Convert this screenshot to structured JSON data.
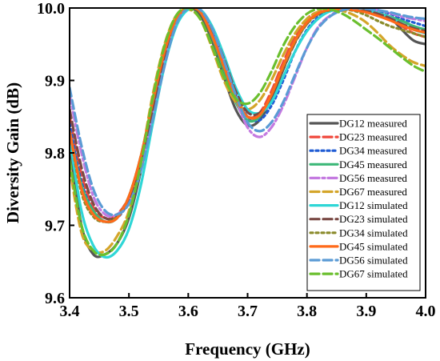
{
  "chart_data": {
    "type": "line",
    "title": "",
    "xlabel": "Frequency (GHz)",
    "ylabel": "Diversity Gain (dB)",
    "xlim": [
      3.4,
      4.0
    ],
    "ylim": [
      9.6,
      10.0
    ],
    "xticks": [
      "3.4",
      "3.5",
      "3.6",
      "3.7",
      "3.8",
      "3.9",
      "4.0"
    ],
    "yticks": [
      "9.6",
      "9.7",
      "9.8",
      "9.9",
      "10.0"
    ],
    "grid": false,
    "legend_position": "lower-right",
    "series": [
      {
        "name": "DG12 measured",
        "color": "#555555",
        "dash": "solid",
        "x": [
          3.4,
          3.42,
          3.44,
          3.46,
          3.48,
          3.5,
          3.52,
          3.54,
          3.56,
          3.58,
          3.6,
          3.62,
          3.64,
          3.66,
          3.68,
          3.7,
          3.72,
          3.74,
          3.76,
          3.78,
          3.8,
          3.82,
          3.84,
          3.86,
          3.88,
          3.9,
          3.92,
          3.94,
          3.96,
          3.98,
          4.0
        ],
        "y": [
          9.81,
          9.7,
          9.66,
          9.66,
          9.675,
          9.71,
          9.775,
          9.86,
          9.935,
          9.985,
          10.0,
          9.99,
          9.955,
          9.905,
          9.86,
          9.838,
          9.845,
          9.875,
          9.915,
          9.955,
          9.98,
          9.993,
          9.998,
          9.999,
          9.998,
          9.996,
          9.993,
          9.987,
          9.97,
          9.955,
          9.95
        ]
      },
      {
        "name": "DG23 measured",
        "color": "#f0483c",
        "dash": "dash",
        "x": [
          3.4,
          3.42,
          3.44,
          3.46,
          3.48,
          3.5,
          3.52,
          3.54,
          3.56,
          3.58,
          3.6,
          3.62,
          3.64,
          3.66,
          3.68,
          3.7,
          3.72,
          3.74,
          3.76,
          3.78,
          3.8,
          3.82,
          3.84,
          3.86,
          3.88,
          3.9,
          3.92,
          3.94,
          3.96,
          3.98,
          4.0
        ],
        "y": [
          9.85,
          9.77,
          9.725,
          9.71,
          9.715,
          9.74,
          9.795,
          9.87,
          9.94,
          9.985,
          10.0,
          9.995,
          9.965,
          9.92,
          9.875,
          9.85,
          9.855,
          9.885,
          9.925,
          9.96,
          9.985,
          9.995,
          9.998,
          9.998,
          9.997,
          9.995,
          9.99,
          9.985,
          9.975,
          9.965,
          9.96
        ]
      },
      {
        "name": "DG34 measured",
        "color": "#1f5bd4",
        "dash": "dot",
        "x": [
          3.4,
          3.42,
          3.44,
          3.46,
          3.48,
          3.5,
          3.52,
          3.54,
          3.56,
          3.58,
          3.6,
          3.62,
          3.64,
          3.66,
          3.68,
          3.7,
          3.72,
          3.74,
          3.76,
          3.78,
          3.8,
          3.82,
          3.84,
          3.86,
          3.88,
          3.9,
          3.92,
          3.94,
          3.96,
          3.98,
          4.0
        ],
        "y": [
          9.84,
          9.76,
          9.72,
          9.705,
          9.71,
          9.735,
          9.79,
          9.865,
          9.935,
          9.982,
          10.0,
          9.996,
          9.968,
          9.925,
          9.88,
          9.85,
          9.845,
          9.865,
          9.9,
          9.94,
          9.97,
          9.988,
          9.996,
          9.999,
          9.999,
          9.998,
          9.996,
          9.992,
          9.985,
          9.98,
          9.975
        ]
      },
      {
        "name": "DG45 measured",
        "color": "#3cb878",
        "dash": "solid",
        "x": [
          3.4,
          3.42,
          3.44,
          3.46,
          3.48,
          3.5,
          3.52,
          3.54,
          3.56,
          3.58,
          3.6,
          3.62,
          3.64,
          3.66,
          3.68,
          3.7,
          3.72,
          3.74,
          3.76,
          3.78,
          3.8,
          3.82,
          3.84,
          3.86,
          3.88,
          3.9,
          3.92,
          3.94,
          3.96,
          3.98,
          4.0
        ],
        "y": [
          9.83,
          9.755,
          9.72,
          9.705,
          9.71,
          9.74,
          9.795,
          9.87,
          9.94,
          9.985,
          10.0,
          9.995,
          9.96,
          9.915,
          9.87,
          9.845,
          9.85,
          9.88,
          9.92,
          9.955,
          9.98,
          9.993,
          9.998,
          9.999,
          9.998,
          9.996,
          9.993,
          9.988,
          9.982,
          9.975,
          9.97
        ]
      },
      {
        "name": "DG56 measured",
        "color": "#c47ae0",
        "dash": "dashdot",
        "x": [
          3.4,
          3.42,
          3.44,
          3.46,
          3.48,
          3.5,
          3.52,
          3.54,
          3.56,
          3.58,
          3.6,
          3.62,
          3.64,
          3.66,
          3.68,
          3.7,
          3.72,
          3.74,
          3.76,
          3.78,
          3.8,
          3.82,
          3.84,
          3.86,
          3.88,
          3.9,
          3.92,
          3.94,
          3.96,
          3.98,
          4.0
        ],
        "y": [
          9.88,
          9.8,
          9.74,
          9.715,
          9.715,
          9.735,
          9.78,
          9.85,
          9.925,
          9.98,
          10.0,
          9.997,
          9.97,
          9.925,
          9.875,
          9.835,
          9.822,
          9.835,
          9.865,
          9.905,
          9.945,
          9.975,
          9.99,
          9.998,
          10.0,
          9.999,
          9.997,
          9.993,
          9.988,
          9.985,
          9.982
        ]
      },
      {
        "name": "DG67 measured",
        "color": "#d4a52a",
        "dash": "dash",
        "x": [
          3.4,
          3.42,
          3.44,
          3.46,
          3.48,
          3.5,
          3.52,
          3.54,
          3.56,
          3.58,
          3.6,
          3.62,
          3.64,
          3.66,
          3.68,
          3.7,
          3.72,
          3.74,
          3.76,
          3.78,
          3.8,
          3.82,
          3.84,
          3.86,
          3.88,
          3.9,
          3.92,
          3.94,
          3.96,
          3.98,
          4.0
        ],
        "y": [
          9.78,
          9.69,
          9.665,
          9.665,
          9.685,
          9.72,
          9.79,
          9.88,
          9.95,
          9.99,
          9.998,
          9.985,
          9.945,
          9.9,
          9.87,
          9.86,
          9.872,
          9.9,
          9.935,
          9.965,
          9.985,
          9.995,
          9.998,
          9.996,
          9.99,
          9.98,
          9.965,
          9.948,
          9.935,
          9.925,
          9.92
        ]
      },
      {
        "name": "DG12 simulated",
        "color": "#2ed6d6",
        "dash": "solid",
        "x": [
          3.4,
          3.42,
          3.44,
          3.46,
          3.48,
          3.5,
          3.52,
          3.54,
          3.56,
          3.58,
          3.6,
          3.62,
          3.64,
          3.66,
          3.68,
          3.7,
          3.72,
          3.74,
          3.76,
          3.78,
          3.8,
          3.82,
          3.84,
          3.86,
          3.88,
          3.9,
          3.92,
          3.94,
          3.96,
          3.98,
          4.0
        ],
        "y": [
          9.82,
          9.72,
          9.672,
          9.656,
          9.665,
          9.695,
          9.755,
          9.84,
          9.92,
          9.975,
          9.998,
          9.998,
          9.975,
          9.935,
          9.89,
          9.86,
          9.855,
          9.87,
          9.905,
          9.94,
          9.968,
          9.986,
          9.996,
          9.999,
          9.999,
          9.997,
          9.993,
          9.987,
          9.978,
          9.97,
          9.965
        ]
      },
      {
        "name": "DG23 simulated",
        "color": "#7a4a45",
        "dash": "dash",
        "x": [
          3.4,
          3.42,
          3.44,
          3.46,
          3.48,
          3.5,
          3.52,
          3.54,
          3.56,
          3.58,
          3.6,
          3.62,
          3.64,
          3.66,
          3.68,
          3.7,
          3.72,
          3.74,
          3.76,
          3.78,
          3.8,
          3.82,
          3.84,
          3.86,
          3.88,
          3.9,
          3.92,
          3.94,
          3.96,
          3.98,
          4.0
        ],
        "y": [
          9.86,
          9.78,
          9.73,
          9.71,
          9.712,
          9.735,
          9.785,
          9.86,
          9.935,
          9.983,
          10.0,
          9.996,
          9.97,
          9.93,
          9.885,
          9.856,
          9.855,
          9.878,
          9.915,
          9.952,
          9.978,
          9.992,
          9.998,
          9.999,
          9.998,
          9.996,
          9.992,
          9.986,
          9.978,
          9.972,
          9.968
        ]
      },
      {
        "name": "DG34 simulated",
        "color": "#8a8a2a",
        "dash": "dot",
        "x": [
          3.4,
          3.42,
          3.44,
          3.46,
          3.48,
          3.5,
          3.52,
          3.54,
          3.56,
          3.58,
          3.6,
          3.62,
          3.64,
          3.66,
          3.68,
          3.7,
          3.72,
          3.74,
          3.76,
          3.78,
          3.8,
          3.82,
          3.84,
          3.86,
          3.88,
          3.9,
          3.92,
          3.94,
          3.96,
          3.98,
          4.0
        ],
        "y": [
          9.83,
          9.745,
          9.712,
          9.705,
          9.712,
          9.74,
          9.795,
          9.87,
          9.94,
          9.985,
          10.0,
          9.994,
          9.962,
          9.918,
          9.875,
          9.85,
          9.852,
          9.88,
          9.918,
          9.953,
          9.978,
          9.992,
          9.997,
          9.998,
          9.996,
          9.99,
          9.982,
          9.975,
          9.97,
          9.965,
          9.96
        ]
      },
      {
        "name": "DG45 simulated",
        "color": "#ff6a1a",
        "dash": "solid",
        "x": [
          3.4,
          3.42,
          3.44,
          3.46,
          3.48,
          3.5,
          3.52,
          3.54,
          3.56,
          3.58,
          3.6,
          3.62,
          3.64,
          3.66,
          3.68,
          3.7,
          3.72,
          3.74,
          3.76,
          3.78,
          3.8,
          3.82,
          3.84,
          3.86,
          3.88,
          3.9,
          3.92,
          3.94,
          3.96,
          3.98,
          4.0
        ],
        "y": [
          9.83,
          9.75,
          9.715,
          9.705,
          9.71,
          9.74,
          9.795,
          9.87,
          9.94,
          9.985,
          10.0,
          9.995,
          9.962,
          9.92,
          9.876,
          9.85,
          9.852,
          9.88,
          9.92,
          9.955,
          9.98,
          9.993,
          9.998,
          9.999,
          9.997,
          9.994,
          9.989,
          9.983,
          9.976,
          9.97,
          9.966
        ]
      },
      {
        "name": "DG56 simulated",
        "color": "#5b9bd5",
        "dash": "dash",
        "x": [
          3.4,
          3.42,
          3.44,
          3.46,
          3.48,
          3.5,
          3.52,
          3.54,
          3.56,
          3.58,
          3.6,
          3.62,
          3.64,
          3.66,
          3.68,
          3.7,
          3.72,
          3.74,
          3.76,
          3.78,
          3.8,
          3.82,
          3.84,
          3.86,
          3.88,
          3.9,
          3.92,
          3.94,
          3.96,
          3.98,
          4.0
        ],
        "y": [
          9.89,
          9.81,
          9.75,
          9.72,
          9.715,
          9.73,
          9.775,
          9.845,
          9.92,
          9.978,
          10.0,
          9.998,
          9.972,
          9.928,
          9.88,
          9.842,
          9.83,
          9.842,
          9.87,
          9.908,
          9.945,
          9.973,
          9.989,
          9.997,
          10.0,
          9.999,
          9.997,
          9.994,
          9.99,
          9.987,
          9.985
        ]
      },
      {
        "name": "DG67 simulated",
        "color": "#6abf2e",
        "dash": "dash",
        "x": [
          3.4,
          3.42,
          3.44,
          3.46,
          3.48,
          3.5,
          3.52,
          3.54,
          3.56,
          3.58,
          3.6,
          3.62,
          3.64,
          3.66,
          3.68,
          3.7,
          3.72,
          3.74,
          3.76,
          3.78,
          3.8,
          3.82,
          3.84,
          3.86,
          3.88,
          3.9,
          3.92,
          3.94,
          3.96,
          3.98,
          4.0
        ],
        "y": [
          9.79,
          9.7,
          9.665,
          9.66,
          9.675,
          9.715,
          9.785,
          9.875,
          9.948,
          9.99,
          10.0,
          9.985,
          9.948,
          9.905,
          9.875,
          9.868,
          9.882,
          9.912,
          9.948,
          9.975,
          9.992,
          9.999,
          9.998,
          9.992,
          9.982,
          9.97,
          9.958,
          9.945,
          9.932,
          9.92,
          9.912
        ]
      }
    ]
  }
}
